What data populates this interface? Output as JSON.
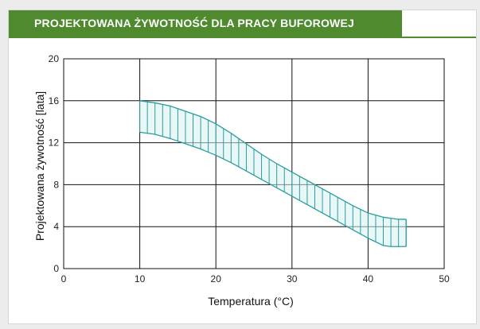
{
  "header": {
    "title": "PROJEKTOWANA ŻYWOTNOŚĆ DLA PRACY BUFOROWEJ"
  },
  "colors": {
    "header": "#4f8a2f",
    "band": "#2a9d9d",
    "grid": "#111111"
  },
  "chart_data": {
    "type": "area",
    "xlabel": "Temperatura (°C)",
    "ylabel": "Projektowana żywotność [lata]",
    "xlim": [
      0,
      50
    ],
    "ylim": [
      0,
      20
    ],
    "xticks": [
      0,
      10,
      20,
      30,
      40,
      50
    ],
    "yticks": [
      0,
      4,
      8,
      12,
      16,
      20
    ],
    "x_tick_labels": [
      "0",
      "10",
      "20",
      "30",
      "40",
      "50"
    ],
    "y_tick_labels": [
      "0",
      "4",
      "8",
      "12",
      "16",
      "20"
    ],
    "grid": true,
    "series": [
      {
        "x": [
          10,
          12,
          14,
          16,
          18,
          20,
          22,
          24,
          26,
          28,
          30,
          32,
          34,
          36,
          38,
          40,
          42,
          43,
          44,
          45
        ],
        "values": [
          16,
          15.8,
          15.5,
          15,
          14.5,
          13.8,
          12.9,
          11.9,
          10.9,
          10,
          9.2,
          8.4,
          7.6,
          6.8,
          6,
          5.3,
          4.9,
          4.8,
          4.7,
          4.7
        ]
      },
      {
        "x": [
          10,
          12,
          14,
          16,
          18,
          20,
          22,
          24,
          26,
          28,
          30,
          32,
          34,
          36,
          38,
          40,
          42,
          43,
          44,
          45
        ],
        "values": [
          13,
          12.8,
          12.4,
          11.9,
          11.4,
          10.8,
          10.1,
          9.3,
          8.5,
          7.7,
          6.9,
          6.1,
          5.3,
          4.5,
          3.7,
          2.9,
          2.2,
          2.1,
          2.1,
          2.1
        ]
      }
    ]
  }
}
